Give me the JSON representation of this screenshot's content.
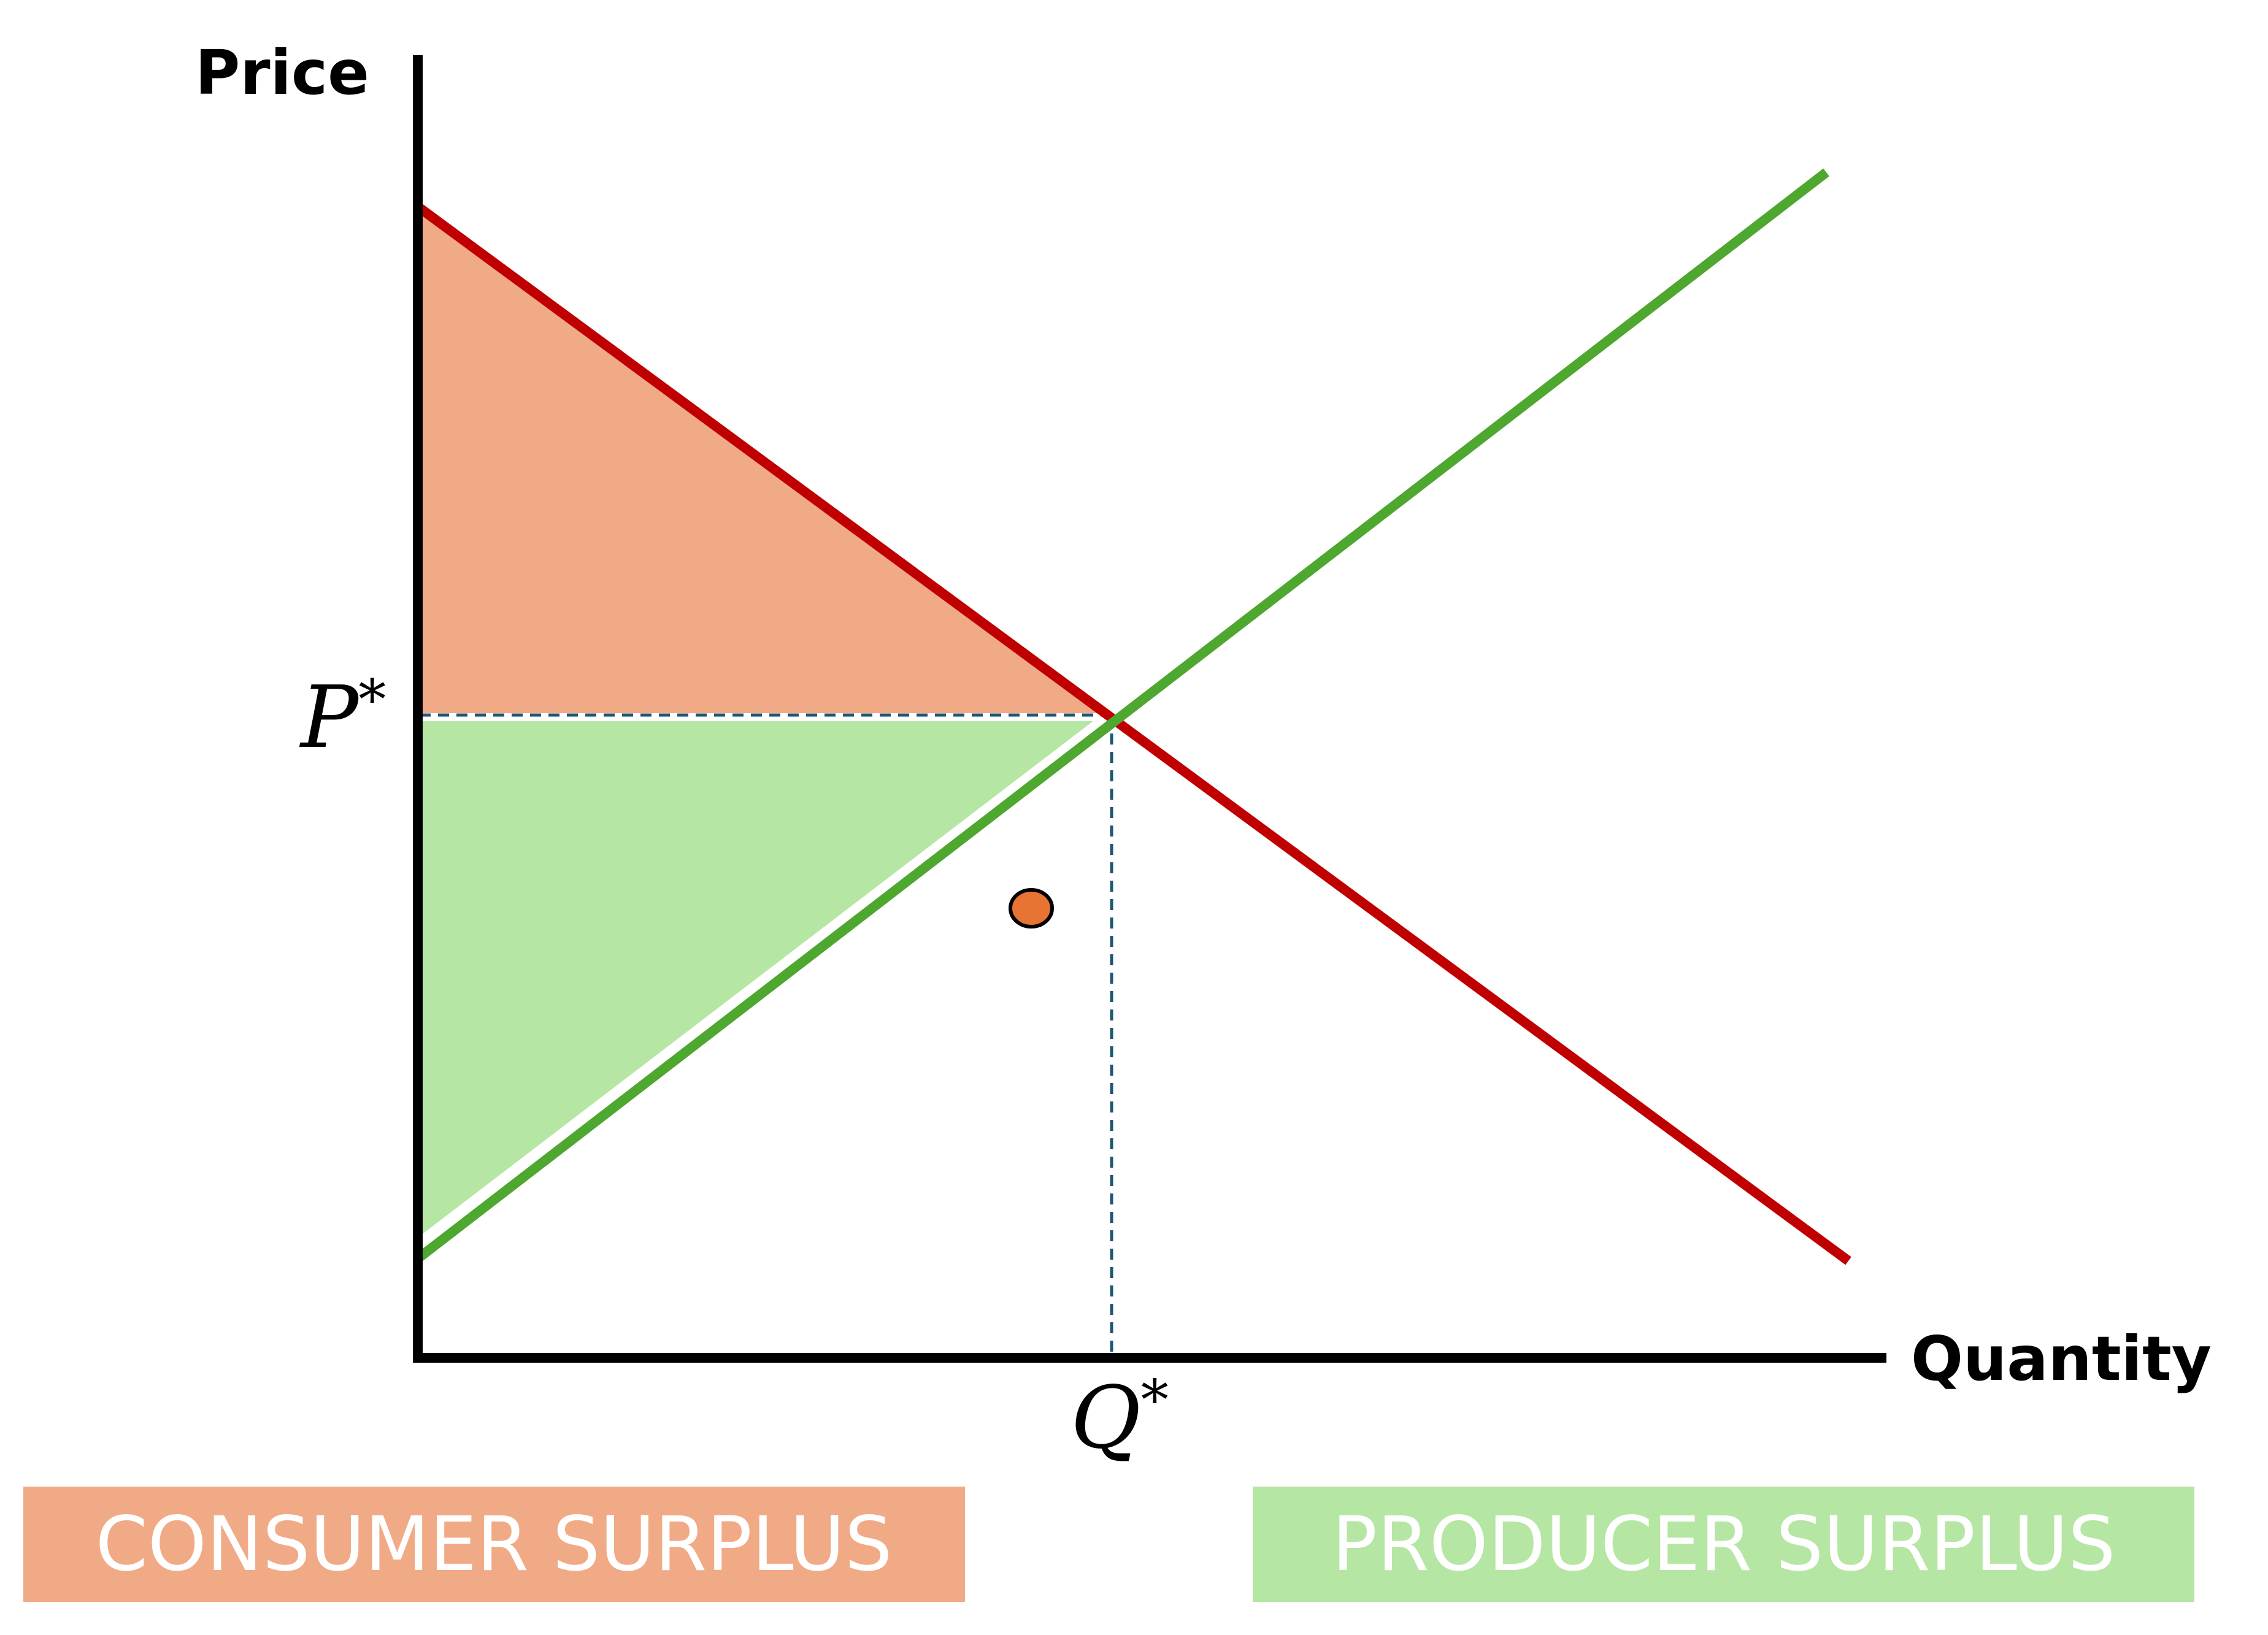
{
  "axes": {
    "y_label": "Price",
    "x_label": "Quantity"
  },
  "equilibrium": {
    "price_label": "P",
    "quantity_label": "Q",
    "star": "*"
  },
  "legend": {
    "consumer_surplus": "CONSUMER SURPLUS",
    "producer_surplus": "PRODUCER SURPLUS"
  },
  "colors": {
    "demand_curve": "#c00000",
    "supply_curve": "#4ea72e",
    "consumer_surplus_fill": "#f1aa86",
    "producer_surplus_fill": "#b5e6a3",
    "guide_lines": "#1f5673",
    "marker_fill": "#e87433"
  }
}
